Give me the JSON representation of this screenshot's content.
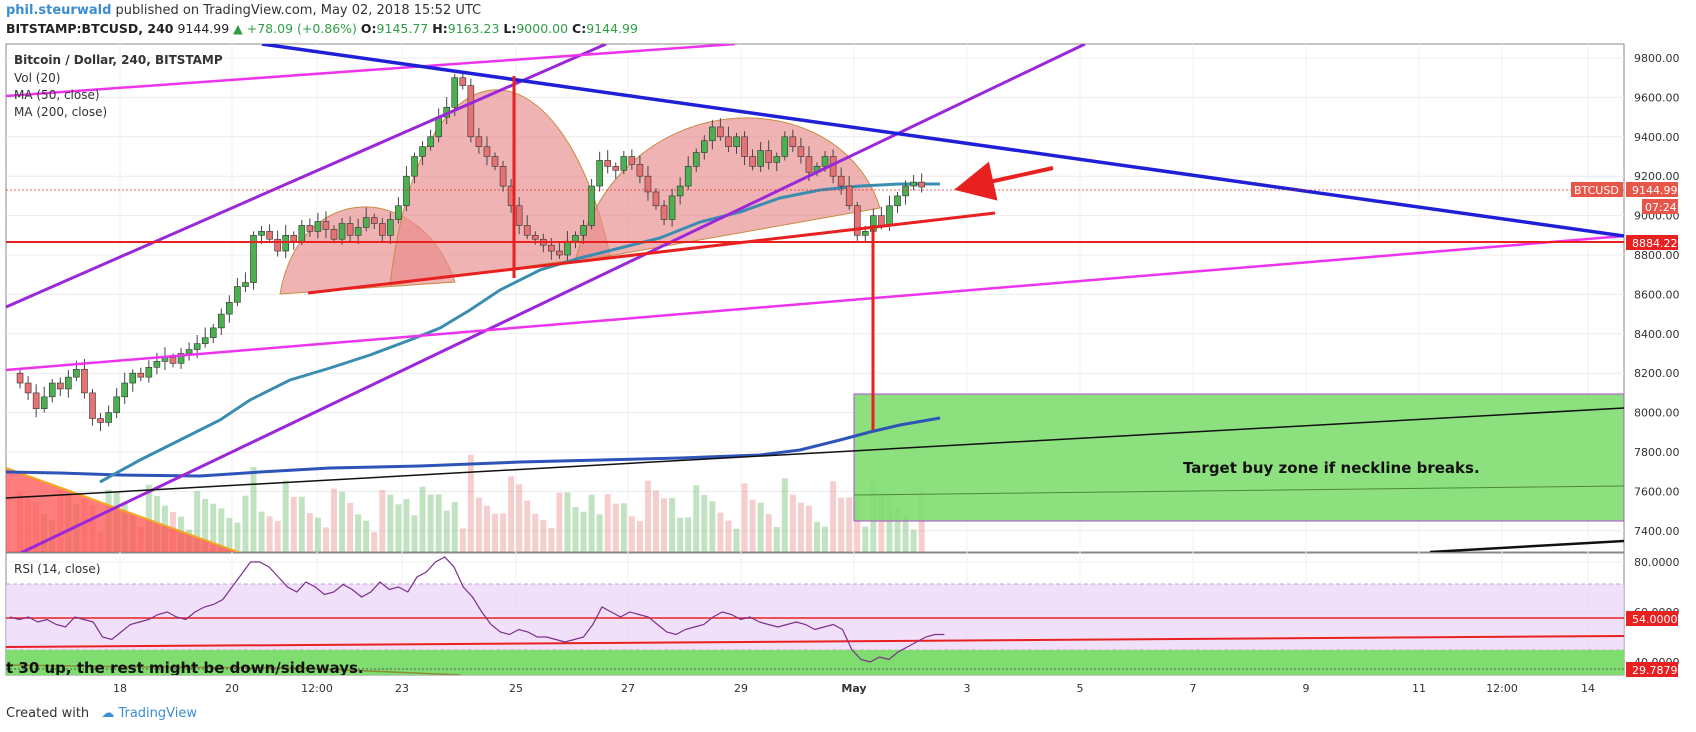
{
  "header": {
    "author": "phil.steurwald",
    "published": " published on TradingView.com, May 02, 2018 15:52 UTC",
    "symbol": "BITSTAMP:BTCUSD, 240",
    "price": "9144.99",
    "change": "▲ +78.09 (+0.86%)",
    "o_label": "O:",
    "o_value": "9145.77",
    "h_label": "H:",
    "h_value": "9163.23",
    "l_label": "L:",
    "l_value": "9000.00",
    "c_label": "C:",
    "c_value": "9144.99"
  },
  "legend": {
    "title": "Bitcoin / Dollar, 240, BITSTAMP",
    "vol": "Vol (20)",
    "ma50": "MA (50, close)",
    "ma200": "MA (200, close)"
  },
  "price_axis": {
    "ticks": [
      "9800.00",
      "9600.00",
      "9400.00",
      "9200.00",
      "9000.00",
      "8800.00",
      "8600.00",
      "8400.00",
      "8200.00",
      "8000.00",
      "7800.00",
      "7600.00",
      "7400.00"
    ],
    "tag_symbol": "BTCUSD",
    "tag_price": "9144.99",
    "tag_timer": "07:24",
    "tag_level": "8884.22"
  },
  "rsi": {
    "title": "RSI (14, close)",
    "ticks": [
      "80.0000",
      "60.0000",
      "40.0000"
    ],
    "tag_value": "54.0000",
    "tag_low": "29.7879"
  },
  "time_axis": {
    "ticks": [
      "18",
      "20",
      "12:00",
      "23",
      "25",
      "27",
      "29",
      "May",
      "3",
      "5",
      "7",
      "9",
      "11",
      "12:00",
      "14"
    ]
  },
  "annotations": {
    "target_zone": "Target buy zone if neckline breaks.",
    "rsi_note": "t 30 up, the rest might be down/sideways."
  },
  "footer": {
    "created": "Created with",
    "brand": "TradingView"
  },
  "colors": {
    "up": "#4caf50",
    "down": "#e57373",
    "blue_trend": "#1f1fd8",
    "purple": "#9c27d8",
    "magenta": "#ee33ee",
    "red": "#e82020",
    "green_zone": "#7fdd6f",
    "ma50": "#3a8db0",
    "ma200": "#2f54b8"
  },
  "chart_data": {
    "type": "candlestick",
    "title": "Bitcoin / Dollar, 240, BITSTAMP",
    "y_range": [
      7300,
      9900
    ],
    "x_labels": [
      "18",
      "20",
      "12:00",
      "23",
      "25",
      "27",
      "29",
      "May",
      "3",
      "5",
      "7",
      "9",
      "11",
      "12:00",
      "14"
    ],
    "last": {
      "open": 9145.77,
      "high": 9163.23,
      "low": 9000.0,
      "close": 9144.99
    },
    "levels": {
      "horizontal_support": 8884.22,
      "current": 9144.99
    },
    "indicators": [
      "Vol (20)",
      "MA (50, close)",
      "MA (200, close)",
      "RSI (14, close)"
    ],
    "rsi_levels": [
      54.0,
      29.7879
    ],
    "rsi_range": [
      30,
      82
    ]
  }
}
